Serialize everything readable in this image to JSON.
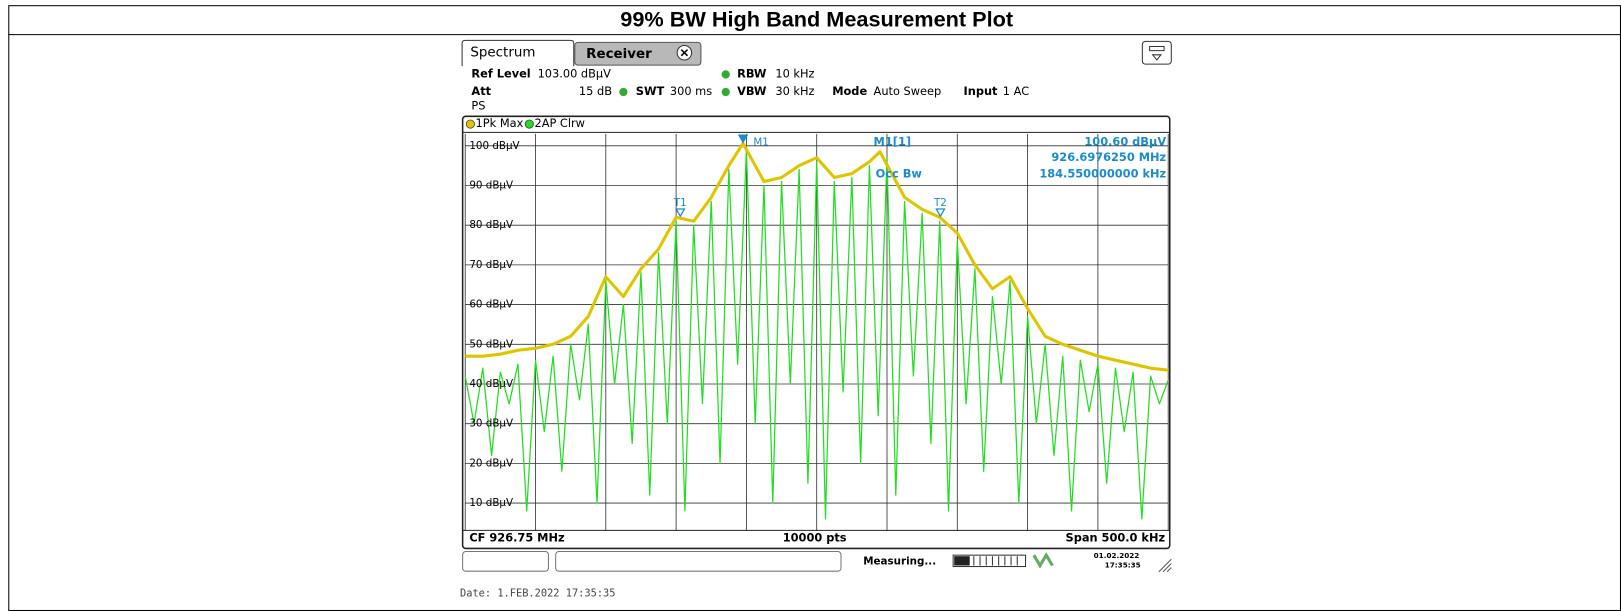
{
  "header": {
    "title": "99% BW High Band Measurement Plot"
  },
  "analyzer": {
    "tabs": [
      "Spectrum",
      "Receiver"
    ],
    "settings": {
      "ref_level_label": "Ref Level",
      "ref_level": "103.00 dBµV",
      "att_label": "Att",
      "att": "15 dB",
      "swt_label": "SWT",
      "swt": "300 ms",
      "rbw_label": "RBW",
      "rbw": "10 kHz",
      "vbw_label": "VBW",
      "vbw": "30 kHz",
      "mode_label": "Mode",
      "mode": "Auto Sweep",
      "input_label": "Input",
      "input": "1 AC",
      "ps": "PS"
    },
    "plot": {
      "type": "line",
      "xlim": [
        -250,
        250
      ],
      "xgrid": [
        -250,
        -200,
        -150,
        -100,
        -50,
        0,
        50,
        100,
        150,
        200,
        250
      ],
      "ylim": [
        3,
        103
      ],
      "yticks": [
        {
          "value": 100,
          "label": "100 dBµV"
        },
        {
          "value": 90,
          "label": "90 dBµV"
        },
        {
          "value": 80,
          "label": "80 dBµV"
        },
        {
          "value": 70,
          "label": "70 dBµV"
        },
        {
          "value": 60,
          "label": "60 dBµV"
        },
        {
          "value": 50,
          "label": "50 dBµV"
        },
        {
          "value": 40,
          "label": "40 dBµV"
        },
        {
          "value": 30,
          "label": "30 dBµV"
        },
        {
          "value": 20,
          "label": "20 dBµV"
        },
        {
          "value": 10,
          "label": "10 dBµV"
        }
      ],
      "grid": true,
      "series": [
        {
          "name": "2AP Clrw",
          "color": "#22dd22",
          "x": [
            -250,
            -243.75,
            -237.5,
            -231.25,
            -225,
            -218.75,
            -212.5,
            -206.25,
            -200,
            -193.75,
            -187.5,
            -181.25,
            -175,
            -168.75,
            -162.5,
            -156.25,
            -150,
            -143.75,
            -137.5,
            -131.25,
            -125,
            -118.75,
            -112.5,
            -106.25,
            -100,
            -93.75,
            -87.5,
            -81.25,
            -75,
            -68.75,
            -62.5,
            -56.25,
            -50,
            -43.75,
            -37.5,
            -31.25,
            -25,
            -18.75,
            -12.5,
            -6.25,
            0,
            6.25,
            12.5,
            18.75,
            25,
            31.25,
            37.5,
            43.75,
            50,
            56.25,
            62.5,
            68.75,
            75,
            81.25,
            87.5,
            93.75,
            100,
            106.25,
            112.5,
            118.75,
            125,
            131.25,
            137.5,
            143.75,
            150,
            156.25,
            162.5,
            168.75,
            175,
            181.25,
            187.5,
            193.75,
            200,
            206.25,
            212.5,
            218.75,
            225,
            231.25,
            237.5,
            243.75,
            250
          ],
          "values": [
            42,
            30,
            44,
            22,
            43,
            35,
            45,
            8,
            46,
            28,
            47,
            18,
            50,
            36,
            55,
            10,
            66,
            40,
            60,
            25,
            68,
            12,
            73,
            30,
            81,
            8,
            80,
            35,
            86,
            20,
            94,
            45,
            99,
            30,
            90,
            10,
            91,
            40,
            94,
            15,
            96,
            6,
            91,
            38,
            92,
            20,
            95,
            32,
            97,
            12,
            86,
            42,
            83,
            25,
            81,
            8,
            76,
            35,
            69,
            18,
            62,
            40,
            66,
            10,
            57,
            30,
            50,
            22,
            47,
            8,
            46,
            33,
            45,
            15,
            44,
            28,
            43,
            6,
            42,
            35,
            41
          ]
        },
        {
          "name": "1Pk Max",
          "color": "#e0c400",
          "x": [
            -250,
            -237.5,
            -225,
            -212.5,
            -200,
            -187.5,
            -175,
            -162.5,
            -150,
            -137.5,
            -125,
            -112.5,
            -100,
            -87.5,
            -75,
            -62.5,
            -52.4,
            -37.5,
            -25,
            -12.5,
            0,
            12.5,
            25,
            37.5,
            45,
            62.5,
            75,
            87.5,
            100,
            112.5,
            125,
            137.5,
            150,
            162.5,
            175,
            187.5,
            200,
            212.5,
            225,
            237.5,
            250
          ],
          "values": [
            47,
            47,
            47.5,
            48.5,
            49,
            50,
            52,
            57,
            67,
            62,
            69,
            74,
            82,
            81,
            87,
            95,
            100.6,
            91,
            92,
            95,
            97,
            92,
            93,
            96,
            98.5,
            87,
            84,
            82,
            78,
            70,
            64,
            67,
            59,
            52,
            50,
            48.5,
            47,
            46,
            45,
            44,
            43.5
          ]
        }
      ],
      "markers": [
        {
          "label": "M1",
          "x": -52.4,
          "value": 100.6,
          "filled": true
        },
        {
          "label": "T1",
          "x": -97,
          "value": 82,
          "filled": false
        },
        {
          "label": "T2",
          "x": 88,
          "value": 82,
          "filled": false
        }
      ]
    },
    "marker_info": {
      "title": "M1[1]",
      "level": "100.60 dBµV",
      "freq": "926.6976250 MHz",
      "occ_label": "Occ Bw",
      "occ_bw": "184.550000000 kHz"
    },
    "footer": {
      "cf": "CF 926.75 MHz",
      "points": "10000 pts",
      "span": "Span 500.0 kHz"
    },
    "status": {
      "state": "Measuring...",
      "date": "01.02.2022",
      "time": "17:35:35"
    }
  },
  "date_line": "Date: 1.FEB.2022  17:35:35"
}
